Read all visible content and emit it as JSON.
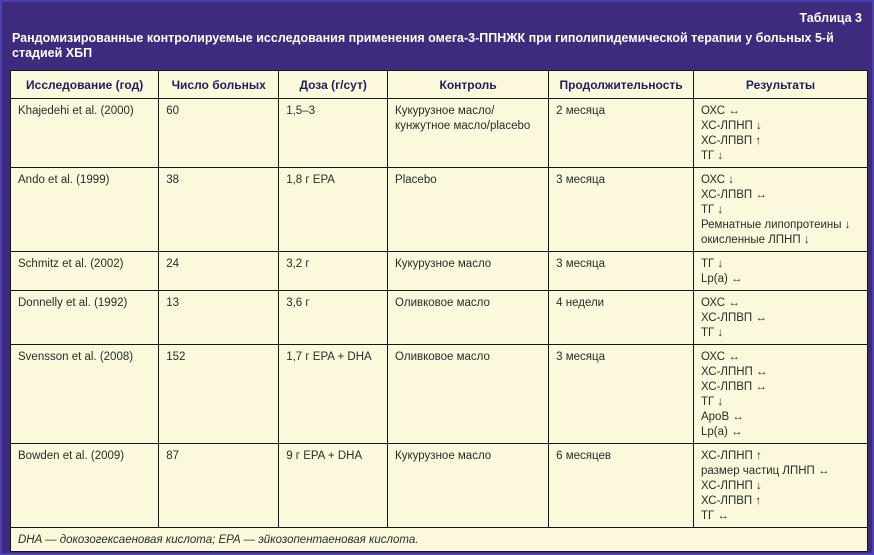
{
  "page": {
    "table_label": "Таблица 3",
    "title": "Рандомизированные контролируемые исследования применения омега-3-ППНЖК при гиполипидемической терапии у больных 5-й стадией ХБП"
  },
  "colors": {
    "frame_purple": "#3e2b7d",
    "outer_line_blue": "#4a41b0",
    "cell_cream": "#fcf8dc",
    "grid_line": "#161616",
    "header_text": "#231c5a",
    "body_text": "#2b2b2b",
    "title_text": "#ffffff"
  },
  "table": {
    "headers": {
      "study": "Исследование (год)",
      "patients": "Число больных",
      "dose": "Доза (г/сут)",
      "control": "Контроль",
      "duration": "Продолжительность",
      "results": "Результаты"
    },
    "rows": [
      {
        "study": "Khajedehi et al. (2000)",
        "patients": "60",
        "dose": "1,5–3",
        "control": "Кукурузное масло/кунжутное масло/placebo",
        "duration": "2 месяца",
        "results": [
          "ОХС ↔",
          "ХС-ЛПНП ↓",
          "ХС-ЛПВП ↑",
          "ТГ ↓"
        ]
      },
      {
        "study": "Ando et al. (1999)",
        "patients": "38",
        "dose": "1,8 г EPA",
        "control": "Placebo",
        "duration": "3 месяца",
        "results": [
          "ОХС ↓",
          "ХС-ЛПВП ↔",
          "ТГ ↓",
          "Ремнатные липопротеины ↓",
          "окисленные ЛПНП ↓"
        ]
      },
      {
        "study": "Schmitz et al. (2002)",
        "patients": "24",
        "dose": "3,2 г",
        "control": "Кукурузное масло",
        "duration": "3 месяца",
        "results": [
          "ТГ ↓",
          "Lp(a) ↔"
        ]
      },
      {
        "study": "Donnelly et al. (1992)",
        "patients": "13",
        "dose": "3,6 г",
        "control": "Оливковое масло",
        "duration": "4 недели",
        "results": [
          "ОХС ↔",
          "ХС-ЛПВП ↔",
          "ТГ ↓"
        ]
      },
      {
        "study": "Svensson et al. (2008)",
        "patients": "152",
        "dose": "1,7 г EPA + DHA",
        "control": "Оливковое масло",
        "duration": "3 месяца",
        "results": [
          "ОХС ↔",
          "ХС-ЛПНП ↔",
          "ХС-ЛПВП ↔",
          "ТГ ↓",
          "ApoB ↔",
          "Lp(a) ↔"
        ]
      },
      {
        "study": "Bowden et al. (2009)",
        "patients": "87",
        "dose": "9 г EPA + DHA",
        "control": "Кукурузное масло",
        "duration": "6 месяцев",
        "results": [
          "ХС-ЛПНП ↑",
          "размер частиц ЛПНП ↔",
          "ХС-ЛПНП ↓",
          "ХС-ЛПВП ↑",
          "ТГ ↔"
        ]
      }
    ],
    "footnote": "DHA — докозогексаеновая кислота; EPA — эйкозопентаеновая кислота."
  }
}
